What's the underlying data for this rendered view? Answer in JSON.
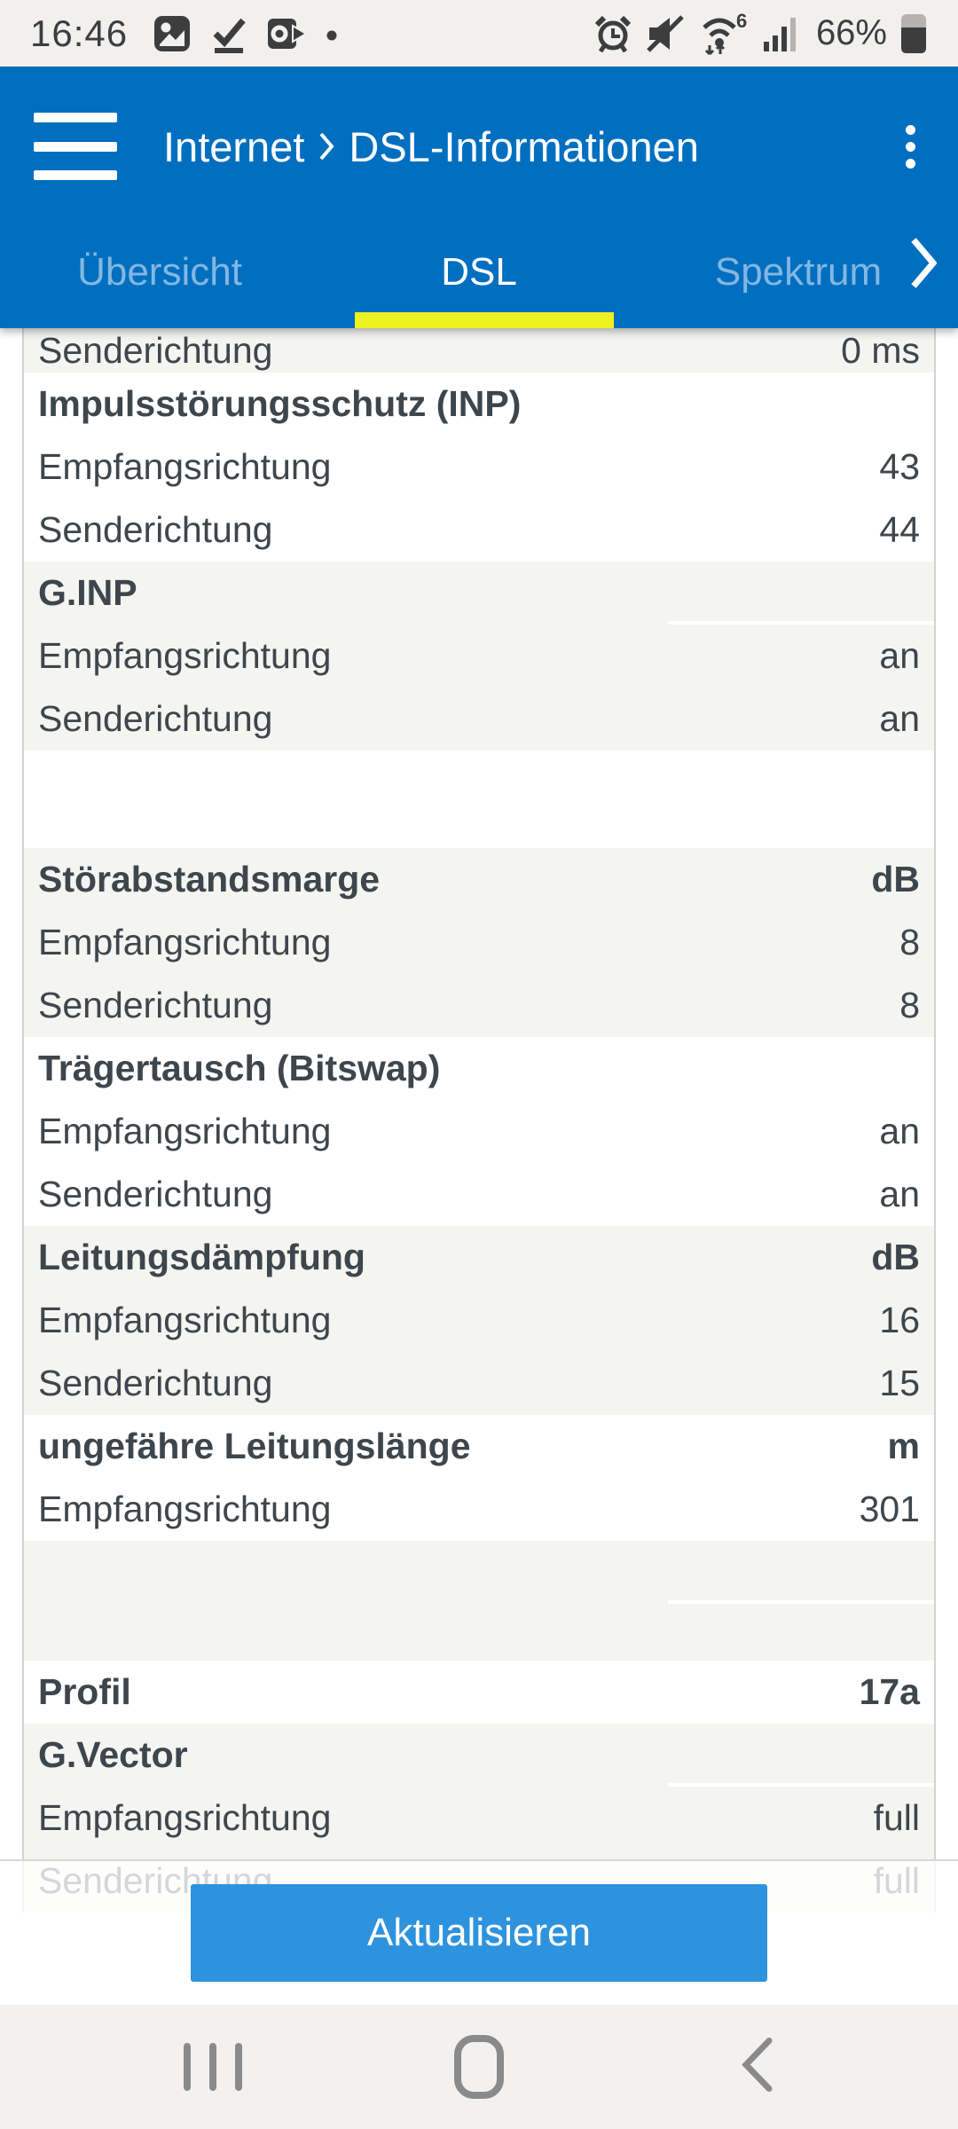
{
  "status_bar": {
    "time": "16:46",
    "battery_percent": "66%",
    "notification_icons": [
      "photo-icon",
      "check-underline-icon",
      "outlook-icon",
      "more-notifications-dot"
    ],
    "status_icons": [
      "alarm-icon",
      "mute-icon",
      "wifi6-icon",
      "signal-icon",
      "battery-icon"
    ]
  },
  "header": {
    "breadcrumb": {
      "section": "Internet",
      "separator": ">",
      "page": "DSL-Informationen"
    },
    "tabs": [
      {
        "label": "Übersicht",
        "active": false
      },
      {
        "label": "DSL",
        "active": true
      },
      {
        "label": "Spektrum",
        "active": false
      }
    ],
    "more_tabs_indicator": "chevron-right-icon"
  },
  "dsl_table": {
    "rows": [
      {
        "label": "Senderichtung",
        "value": "0 ms",
        "type": "data",
        "bg": "gray",
        "partial": true
      },
      {
        "label": "Impulsstörungsschutz (INP)",
        "value": "",
        "type": "header",
        "bg": "white"
      },
      {
        "label": "Empfangsrichtung",
        "value": "43",
        "type": "data",
        "bg": "white"
      },
      {
        "label": "Senderichtung",
        "value": "44",
        "type": "data",
        "bg": "white"
      },
      {
        "label": "G.INP",
        "value": "",
        "type": "header",
        "bg": "gray",
        "sep_right": true
      },
      {
        "label": "Empfangsrichtung",
        "value": "an",
        "type": "data",
        "bg": "gray"
      },
      {
        "label": "Senderichtung",
        "value": "an",
        "type": "data",
        "bg": "gray"
      },
      {
        "label": "",
        "value": "",
        "type": "gap",
        "bg": "white"
      },
      {
        "label": "Störabstandsmarge",
        "value": "dB",
        "type": "header",
        "bg": "gray"
      },
      {
        "label": "Empfangsrichtung",
        "value": "8",
        "type": "data",
        "bg": "gray"
      },
      {
        "label": "Senderichtung",
        "value": "8",
        "type": "data",
        "bg": "gray"
      },
      {
        "label": "Trägertausch (Bitswap)",
        "value": "",
        "type": "header",
        "bg": "white"
      },
      {
        "label": "Empfangsrichtung",
        "value": "an",
        "type": "data",
        "bg": "white"
      },
      {
        "label": "Senderichtung",
        "value": "an",
        "type": "data",
        "bg": "white"
      },
      {
        "label": "Leitungsdämpfung",
        "value": "dB",
        "type": "header",
        "bg": "gray"
      },
      {
        "label": "Empfangsrichtung",
        "value": "16",
        "type": "data",
        "bg": "gray"
      },
      {
        "label": "Senderichtung",
        "value": "15",
        "type": "data",
        "bg": "gray"
      },
      {
        "label": "ungefähre Leitungslänge",
        "value": "m",
        "type": "header",
        "bg": "white"
      },
      {
        "label": "Empfangsrichtung",
        "value": "301",
        "type": "data",
        "bg": "white"
      },
      {
        "label": "",
        "value": "",
        "type": "gap2",
        "bg": "gray",
        "sep_right": true
      },
      {
        "label": "Profil",
        "value": "17a",
        "type": "header",
        "bg": "white"
      },
      {
        "label": "G.Vector",
        "value": "",
        "type": "header",
        "bg": "gray",
        "sep_right": true
      },
      {
        "label": "Empfangsrichtung",
        "value": "full",
        "type": "data",
        "bg": "gray"
      },
      {
        "label": "Senderichtung",
        "value": "full",
        "type": "data",
        "bg": "gray"
      }
    ]
  },
  "footer": {
    "refresh_button": "Aktualisieren"
  },
  "android_nav": {
    "icons": [
      "recents-icon",
      "home-icon",
      "back-icon"
    ]
  },
  "colors": {
    "header_blue": "#006fc0",
    "tab_underline_yellow": "#eef122",
    "button_blue": "#2e93de",
    "section_gray": "#f4f4f1",
    "text_dark": "#3d464c",
    "status_bar_gray": "#f1f0ee"
  }
}
